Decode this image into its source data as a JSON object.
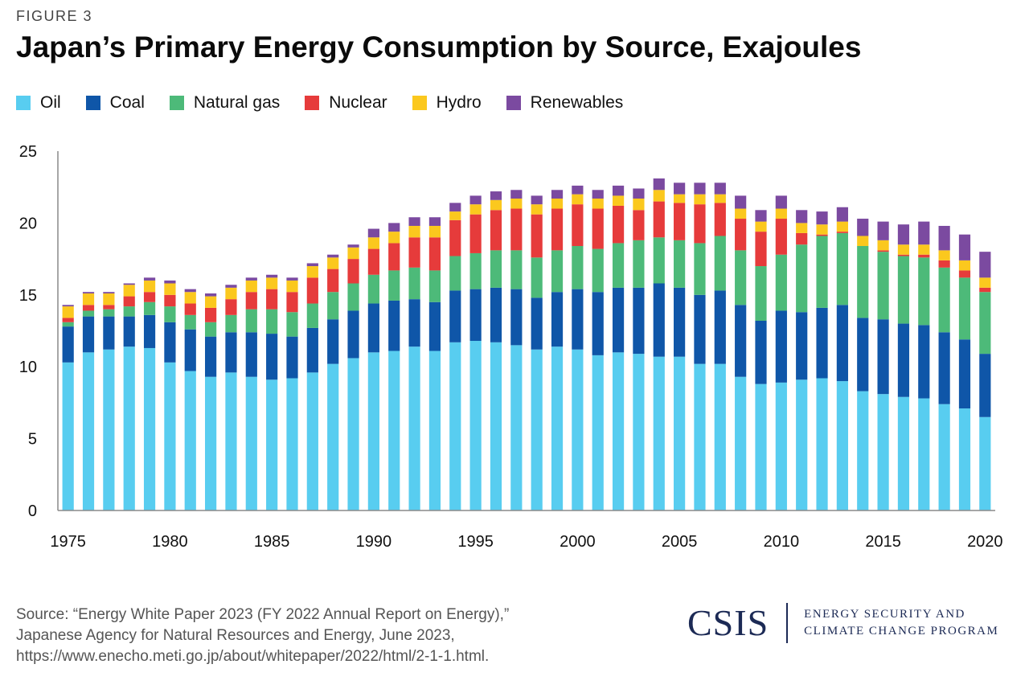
{
  "figure_label": "FIGURE 3",
  "title": "Japan’s Primary Energy Consumption by Source, Exajoules",
  "source_lines": [
    "Source: “Energy White Paper 2023 (FY 2022 Annual Report on Energy),”",
    "Japanese Agency for Natural Resources and Energy, June 2023,",
    "https://www.enecho.meti.go.jp/about/whitepaper/2022/html/2-1-1.html."
  ],
  "logo": {
    "wordmark": "CSIS",
    "program_line1": "ENERGY SECURITY AND",
    "program_line2": "CLIMATE CHANGE PROGRAM"
  },
  "chart_data": {
    "type": "bar",
    "stacked": true,
    "title": "Japan’s Primary Energy Consumption by Source, Exajoules",
    "xlabel": "",
    "ylabel": "",
    "ylim": [
      0,
      25
    ],
    "yticks": [
      0,
      5,
      10,
      15,
      20,
      25
    ],
    "xtick_labels": [
      "1975",
      "1980",
      "1985",
      "1990",
      "1995",
      "2000",
      "2005",
      "2010",
      "2015",
      "2020"
    ],
    "legend_position": "top-left",
    "grid": false,
    "categories": [
      1975,
      1976,
      1977,
      1978,
      1979,
      1980,
      1981,
      1982,
      1983,
      1984,
      1985,
      1986,
      1987,
      1988,
      1989,
      1990,
      1991,
      1992,
      1993,
      1994,
      1995,
      1996,
      1997,
      1998,
      1999,
      2000,
      2001,
      2002,
      2003,
      2004,
      2005,
      2006,
      2007,
      2008,
      2009,
      2010,
      2011,
      2012,
      2013,
      2014,
      2015,
      2016,
      2017,
      2018,
      2019,
      2020
    ],
    "series": [
      {
        "name": "Oil",
        "color": "#58CDF0",
        "values": [
          10.3,
          11.0,
          11.2,
          11.4,
          11.3,
          10.3,
          9.7,
          9.3,
          9.6,
          9.3,
          9.1,
          9.2,
          9.6,
          10.2,
          10.6,
          11.0,
          11.1,
          11.4,
          11.1,
          11.7,
          11.8,
          11.7,
          11.5,
          11.2,
          11.4,
          11.2,
          10.8,
          11.0,
          10.9,
          10.7,
          10.7,
          10.2,
          10.2,
          9.3,
          8.8,
          8.9,
          9.1,
          9.2,
          9.0,
          8.3,
          8.1,
          7.9,
          7.8,
          7.4,
          7.1,
          6.5
        ]
      },
      {
        "name": "Coal",
        "color": "#0F56A8",
        "values": [
          2.5,
          2.5,
          2.3,
          2.1,
          2.3,
          2.8,
          2.9,
          2.8,
          2.8,
          3.1,
          3.2,
          2.9,
          3.1,
          3.1,
          3.3,
          3.4,
          3.5,
          3.3,
          3.4,
          3.6,
          3.6,
          3.8,
          3.9,
          3.6,
          3.8,
          4.2,
          4.4,
          4.5,
          4.6,
          5.1,
          4.8,
          4.8,
          5.1,
          5.0,
          4.4,
          5.0,
          4.7,
          4.9,
          5.3,
          5.1,
          5.2,
          5.1,
          5.1,
          5.0,
          4.8,
          4.4
        ]
      },
      {
        "name": "Natural gas",
        "color": "#4DBA79",
        "values": [
          0.3,
          0.4,
          0.5,
          0.7,
          0.9,
          1.1,
          1.0,
          1.0,
          1.2,
          1.6,
          1.7,
          1.7,
          1.7,
          1.9,
          1.9,
          2.0,
          2.1,
          2.2,
          2.2,
          2.4,
          2.5,
          2.6,
          2.7,
          2.8,
          2.9,
          3.0,
          3.0,
          3.1,
          3.3,
          3.2,
          3.3,
          3.6,
          3.8,
          3.8,
          3.8,
          3.9,
          4.7,
          5.0,
          5.0,
          5.0,
          4.7,
          4.7,
          4.7,
          4.5,
          4.3,
          4.3
        ]
      },
      {
        "name": "Nuclear",
        "color": "#E63B3B",
        "values": [
          0.3,
          0.4,
          0.3,
          0.7,
          0.7,
          0.8,
          0.8,
          1.0,
          1.1,
          1.2,
          1.4,
          1.4,
          1.8,
          1.6,
          1.7,
          1.8,
          1.9,
          2.1,
          2.3,
          2.5,
          2.7,
          2.8,
          2.9,
          3.0,
          2.9,
          2.9,
          2.8,
          2.6,
          2.1,
          2.5,
          2.6,
          2.7,
          2.3,
          2.2,
          2.4,
          2.5,
          0.8,
          0.1,
          0.1,
          0.0,
          0.1,
          0.1,
          0.2,
          0.5,
          0.5,
          0.3
        ]
      },
      {
        "name": "Hydro",
        "color": "#FBC81E",
        "values": [
          0.8,
          0.8,
          0.8,
          0.8,
          0.8,
          0.8,
          0.8,
          0.8,
          0.8,
          0.8,
          0.8,
          0.8,
          0.8,
          0.8,
          0.8,
          0.8,
          0.8,
          0.8,
          0.8,
          0.6,
          0.7,
          0.7,
          0.7,
          0.7,
          0.7,
          0.7,
          0.7,
          0.7,
          0.8,
          0.8,
          0.6,
          0.7,
          0.6,
          0.7,
          0.7,
          0.7,
          0.7,
          0.7,
          0.7,
          0.7,
          0.7,
          0.7,
          0.7,
          0.7,
          0.7,
          0.7
        ]
      },
      {
        "name": "Renewables",
        "color": "#7B4AA0",
        "values": [
          0.1,
          0.1,
          0.1,
          0.1,
          0.2,
          0.2,
          0.2,
          0.2,
          0.2,
          0.2,
          0.2,
          0.2,
          0.2,
          0.2,
          0.2,
          0.6,
          0.6,
          0.6,
          0.6,
          0.6,
          0.6,
          0.6,
          0.6,
          0.6,
          0.6,
          0.6,
          0.6,
          0.7,
          0.7,
          0.8,
          0.8,
          0.8,
          0.8,
          0.9,
          0.8,
          0.9,
          0.9,
          0.9,
          1.0,
          1.2,
          1.3,
          1.4,
          1.6,
          1.7,
          1.8,
          1.8
        ]
      }
    ]
  }
}
